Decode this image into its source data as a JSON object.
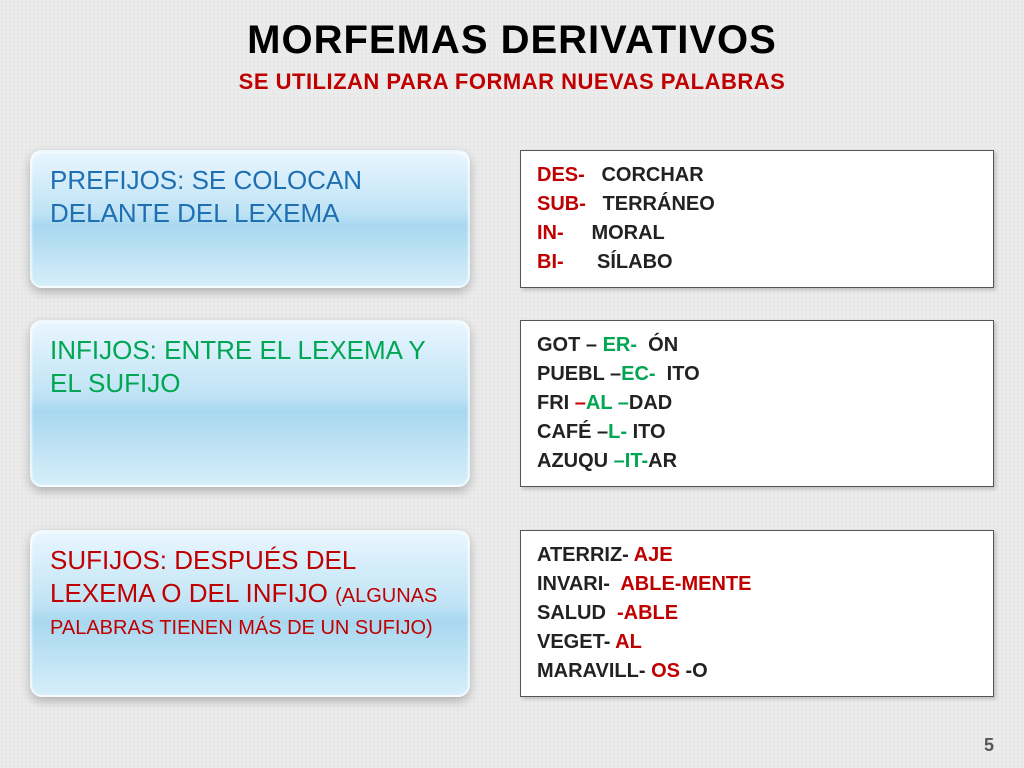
{
  "title": "MORFEMAS  DERIVATIVOS",
  "subtitle": "SE UTILIZAN PARA FORMAR NUEVAS PALABRAS",
  "subtitle_color": "#c00000",
  "page_number": "5",
  "rows": [
    {
      "left": {
        "text": "PREFIJOS: SE COLOCAN DELANTE DEL LEXEMA",
        "color": "#1f6fb3"
      },
      "right_lines": [
        [
          {
            "t": "DES-",
            "c": "red"
          },
          {
            "t": "   CORCHAR",
            "c": "black"
          }
        ],
        [
          {
            "t": "SUB-",
            "c": "red"
          },
          {
            "t": "   TERRÁNEO",
            "c": "black"
          }
        ],
        [
          {
            "t": "IN-",
            "c": "red"
          },
          {
            "t": "     MORAL",
            "c": "black"
          }
        ],
        [
          {
            "t": "BI-",
            "c": "red"
          },
          {
            "t": "      SÍLABO",
            "c": "black"
          }
        ]
      ]
    },
    {
      "left": {
        "text": "INFIJOS:  ENTRE EL LEXEMA Y EL SUFIJO",
        "color": "#00a651"
      },
      "right_lines": [
        [
          {
            "t": "GOT – ",
            "c": "black"
          },
          {
            "t": "ER-",
            "c": "green"
          },
          {
            "t": "  ÓN",
            "c": "black"
          }
        ],
        [
          {
            "t": "PUEBL –",
            "c": "black"
          },
          {
            "t": "EC-",
            "c": "green"
          },
          {
            "t": "  ITO",
            "c": "black"
          }
        ],
        [
          {
            "t": "FRI ",
            "c": "black"
          },
          {
            "t": "–",
            "c": "red"
          },
          {
            "t": "AL –",
            "c": "green"
          },
          {
            "t": "DAD",
            "c": "black"
          }
        ],
        [
          {
            "t": "CAFÉ –",
            "c": "black"
          },
          {
            "t": "L-",
            "c": "green"
          },
          {
            "t": " ITO",
            "c": "black"
          }
        ],
        [
          {
            "t": "AZUQU ",
            "c": "black"
          },
          {
            "t": "–IT-",
            "c": "green"
          },
          {
            "t": "AR",
            "c": "black"
          }
        ]
      ]
    },
    {
      "left": {
        "text_main": "SUFIJOS: DESPUÉS DEL LEXEMA O DEL INFIJO ",
        "text_sub": "(ALGUNAS PALABRAS TIENEN MÁS DE UN SUFIJO)",
        "color": "#c00000"
      },
      "right_lines": [
        [
          {
            "t": "ATERRIZ- ",
            "c": "black"
          },
          {
            "t": "AJE",
            "c": "red"
          }
        ],
        [
          {
            "t": "INVARI-  ",
            "c": "black"
          },
          {
            "t": "ABLE-MENTE",
            "c": "red"
          }
        ],
        [
          {
            "t": "SALUD  ",
            "c": "black"
          },
          {
            "t": "-ABLE",
            "c": "red"
          }
        ],
        [
          {
            "t": "VEGET- ",
            "c": "black"
          },
          {
            "t": "AL",
            "c": "red"
          }
        ],
        [
          {
            "t": "MARAVILL- ",
            "c": "black"
          },
          {
            "t": "OS",
            "c": "red"
          },
          {
            "t": " -O",
            "c": "black"
          }
        ]
      ]
    }
  ]
}
